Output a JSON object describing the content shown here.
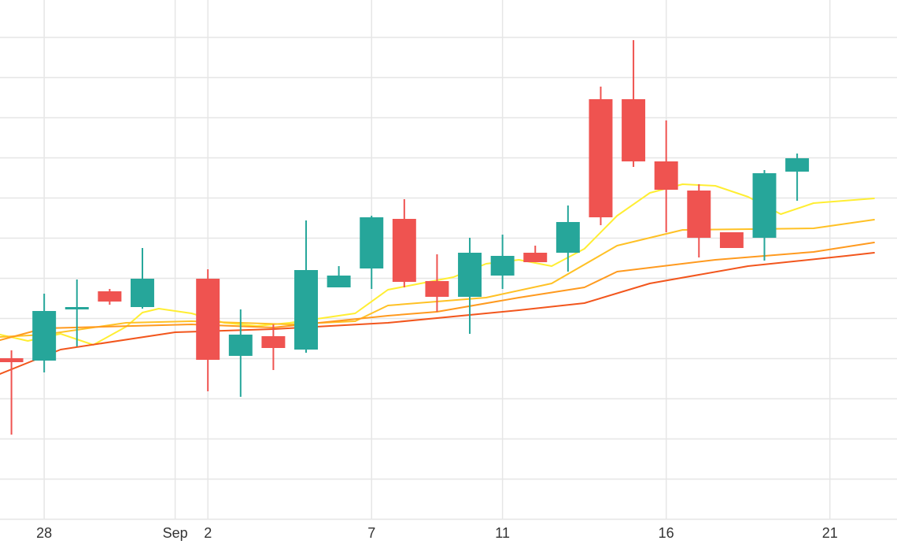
{
  "chart_data": {
    "type": "candlestick",
    "x_tick_labels": [
      {
        "day": 28,
        "label": "28"
      },
      {
        "day": 32,
        "label": "Sep"
      },
      {
        "day": 33,
        "label": "2"
      },
      {
        "day": 38,
        "label": "7"
      },
      {
        "day": 42,
        "label": "11"
      },
      {
        "day": 47,
        "label": "16"
      },
      {
        "day": 52,
        "label": "21"
      }
    ],
    "xlim": [
      26.65,
      54.05
    ],
    "ylim": [
      0,
      660
    ],
    "grid": true,
    "colors": {
      "up": "#26a69a",
      "down": "#ef5350",
      "grid": "#e6e6e6",
      "ma": [
        "#ffee33",
        "#ffc125",
        "#ff9a1f",
        "#f2561d"
      ]
    },
    "candles": [
      {
        "day": 27,
        "open": 205,
        "high": 215,
        "low": 108,
        "close": 200
      },
      {
        "day": 28,
        "open": 202,
        "high": 287,
        "low": 187,
        "close": 265
      },
      {
        "day": 29,
        "open": 267,
        "high": 305,
        "low": 220,
        "close": 270
      },
      {
        "day": 30,
        "open": 290,
        "high": 293,
        "low": 273,
        "close": 277
      },
      {
        "day": 31,
        "open": 270,
        "high": 345,
        "low": 268,
        "close": 306
      },
      {
        "day": 33,
        "open": 306,
        "high": 318,
        "low": 163,
        "close": 203
      },
      {
        "day": 34,
        "open": 208,
        "high": 267,
        "low": 156,
        "close": 235
      },
      {
        "day": 35,
        "open": 233,
        "high": 248,
        "low": 190,
        "close": 218
      },
      {
        "day": 36,
        "open": 216,
        "high": 380,
        "low": 212,
        "close": 317
      },
      {
        "day": 37,
        "open": 295,
        "high": 322,
        "low": 295,
        "close": 310
      },
      {
        "day": 38,
        "open": 319,
        "high": 386,
        "low": 293,
        "close": 384
      },
      {
        "day": 39,
        "open": 382,
        "high": 407,
        "low": 295,
        "close": 302
      },
      {
        "day": 40,
        "open": 303,
        "high": 337,
        "low": 264,
        "close": 283
      },
      {
        "day": 41,
        "open": 283,
        "high": 358,
        "low": 236,
        "close": 339
      },
      {
        "day": 42,
        "open": 310,
        "high": 362,
        "low": 293,
        "close": 335
      },
      {
        "day": 43,
        "open": 339,
        "high": 348,
        "low": 327,
        "close": 327
      },
      {
        "day": 44,
        "open": 339,
        "high": 399,
        "low": 315,
        "close": 378
      },
      {
        "day": 45,
        "open": 534,
        "high": 550,
        "low": 374,
        "close": 384
      },
      {
        "day": 46,
        "open": 534,
        "high": 609,
        "low": 448,
        "close": 455
      },
      {
        "day": 47,
        "open": 455,
        "high": 507,
        "low": 365,
        "close": 419
      },
      {
        "day": 48,
        "open": 418,
        "high": 426,
        "low": 333,
        "close": 358
      },
      {
        "day": 49,
        "open": 365,
        "high": 365,
        "low": 345,
        "close": 345
      },
      {
        "day": 50,
        "open": 358,
        "high": 444,
        "low": 329,
        "close": 440
      },
      {
        "day": 51,
        "open": 442,
        "high": 465,
        "low": 405,
        "close": 459
      }
    ],
    "moving_averages": [
      {
        "values": [
          [
            26.65,
            235
          ],
          [
            27.5,
            227
          ],
          [
            28.5,
            236
          ],
          [
            29.5,
            222
          ],
          [
            30.5,
            245
          ],
          [
            31,
            263
          ],
          [
            31.5,
            268
          ],
          [
            32.5,
            262
          ],
          [
            33.5,
            250
          ],
          [
            34.5,
            246
          ],
          [
            35.5,
            250
          ],
          [
            36.5,
            256
          ],
          [
            37.5,
            262
          ],
          [
            38.5,
            292
          ],
          [
            39.5,
            300
          ],
          [
            40.5,
            308
          ],
          [
            41.5,
            325
          ],
          [
            42.5,
            330
          ],
          [
            43.5,
            322
          ],
          [
            44.5,
            344
          ],
          [
            45.5,
            386
          ],
          [
            46.5,
            415
          ],
          [
            47.5,
            426
          ],
          [
            48.5,
            424
          ],
          [
            49.5,
            410
          ],
          [
            50.5,
            388
          ],
          [
            51.5,
            402
          ],
          [
            53.35,
            408
          ]
        ]
      },
      {
        "values": [
          [
            26.65,
            232
          ],
          [
            28,
            235
          ],
          [
            30.5,
            250
          ],
          [
            32.5,
            252
          ],
          [
            35.5,
            248
          ],
          [
            37.5,
            252
          ],
          [
            38.5,
            272
          ],
          [
            41.5,
            282
          ],
          [
            43.5,
            300
          ],
          [
            45.5,
            348
          ],
          [
            47.5,
            368
          ],
          [
            51.5,
            370
          ],
          [
            53.35,
            381
          ]
        ]
      },
      {
        "values": [
          [
            26.65,
            228
          ],
          [
            28,
            243
          ],
          [
            32.5,
            248
          ],
          [
            35,
            244
          ],
          [
            38.5,
            259
          ],
          [
            40,
            264
          ],
          [
            42.5,
            282
          ],
          [
            44.5,
            295
          ],
          [
            45.5,
            315
          ],
          [
            48.5,
            330
          ],
          [
            51.5,
            340
          ],
          [
            53.35,
            352
          ]
        ]
      },
      {
        "values": [
          [
            26.65,
            185
          ],
          [
            28.5,
            216
          ],
          [
            32,
            238
          ],
          [
            35,
            242
          ],
          [
            38.5,
            250
          ],
          [
            42.5,
            266
          ],
          [
            44.5,
            275
          ],
          [
            46.5,
            300
          ],
          [
            49.5,
            322
          ],
          [
            52.5,
            335
          ],
          [
            53.35,
            339
          ]
        ]
      }
    ]
  }
}
